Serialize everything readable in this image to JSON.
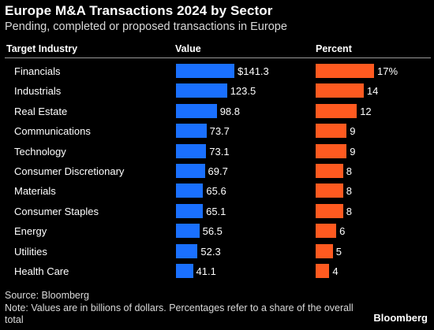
{
  "chart_data": {
    "type": "table",
    "title": "Europe M&A Transactions 2024 by Sector",
    "subtitle": "Pending, completed or proposed transactions in Europe",
    "columns": [
      "Target Industry",
      "Value",
      "Percent"
    ],
    "categories": [
      "Financials",
      "Industrials",
      "Real Estate",
      "Communications",
      "Technology",
      "Consumer Discretionary",
      "Materials",
      "Consumer Staples",
      "Energy",
      "Utilities",
      "Health Care"
    ],
    "series": [
      {
        "name": "Value",
        "values": [
          141.3,
          123.5,
          98.8,
          73.7,
          73.1,
          69.7,
          65.6,
          65.1,
          56.5,
          52.3,
          41.1
        ],
        "color": "#1a70ff"
      },
      {
        "name": "Percent",
        "values": [
          17,
          14,
          12,
          9,
          9,
          8,
          8,
          8,
          6,
          5,
          4
        ],
        "color": "#ff5a20"
      }
    ],
    "value_labels": [
      "$141.3",
      "123.5",
      "98.8",
      "73.7",
      "73.1",
      "69.7",
      "65.6",
      "65.1",
      "56.5",
      "52.3",
      "41.1"
    ],
    "percent_labels": [
      "17%",
      "14",
      "12",
      "9",
      "9",
      "8",
      "8",
      "8",
      "6",
      "5",
      "4"
    ]
  },
  "footer": {
    "source": "Source: Bloomberg",
    "note": "Note: Values are in billions of dollars. Percentages refer to a share of the overall total",
    "brand": "Bloomberg"
  }
}
